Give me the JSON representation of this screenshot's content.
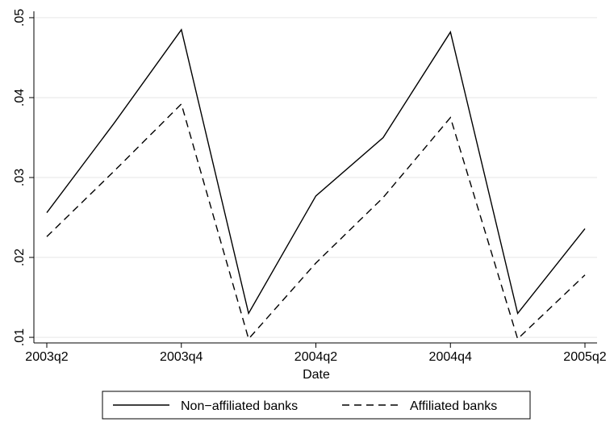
{
  "chart_data": {
    "type": "line",
    "title": "",
    "xlabel": "Date",
    "ylabel": "",
    "categories": [
      "2003q2",
      "2003q3",
      "2003q4",
      "2004q1",
      "2004q2",
      "2004q3",
      "2004q4",
      "2005q1",
      "2005q2"
    ],
    "x_tick_labels": [
      "2003q2",
      "2003q4",
      "2004q2",
      "2004q4",
      "2005q2"
    ],
    "y_tick_labels": [
      ".01",
      ".02",
      ".03",
      ".04",
      ".05"
    ],
    "y_ticks": [
      0.01,
      0.02,
      0.03,
      0.04,
      0.05
    ],
    "ylim": [
      0.0093,
      0.0508
    ],
    "grid": true,
    "legend_position": "bottom",
    "series": [
      {
        "name": "Non−affiliated banks",
        "style": "solid",
        "color": "#000000",
        "values": [
          0.0256,
          0.0368,
          0.0485,
          0.013,
          0.0277,
          0.035,
          0.0482,
          0.013,
          0.0236
        ]
      },
      {
        "name": "Affiliated banks",
        "style": "dashed",
        "color": "#000000",
        "values": [
          0.0226,
          0.0308,
          0.0392,
          0.0098,
          0.0193,
          0.0275,
          0.0375,
          0.0098,
          0.0178
        ]
      }
    ]
  }
}
